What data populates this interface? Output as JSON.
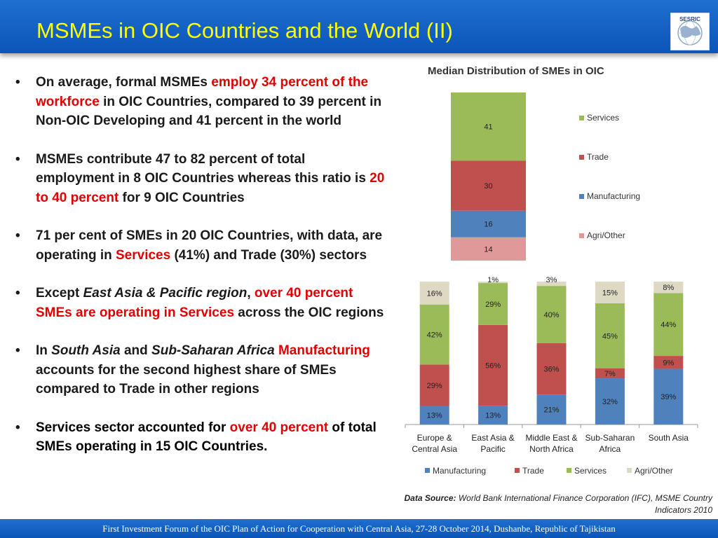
{
  "header": {
    "title": "MSMEs in OIC Countries and the World (II)",
    "logo_text": "SESRIC"
  },
  "bullets": [
    {
      "parts": [
        {
          "text": "On average, formal MSMEs ",
          "style": "normal"
        },
        {
          "text": "employ 34 percent of the workforce",
          "style": "red"
        },
        {
          "text": " in OIC Countries, compared to 39 percent in Non-OIC Developing and 41 percent in the world",
          "style": "normal"
        }
      ]
    },
    {
      "parts": [
        {
          "text": "MSMEs contribute 47 to 82 percent of total employment in 8 OIC Countries whereas this ratio is ",
          "style": "normal"
        },
        {
          "text": "20 to 40 percent",
          "style": "red"
        },
        {
          "text": " for 9 OIC Countries",
          "style": "normal"
        }
      ]
    },
    {
      "parts": [
        {
          "text": "71 per cent of SMEs in 20 OIC Countries, with data, are operating in ",
          "style": "normal"
        },
        {
          "text": "Services",
          "style": "red"
        },
        {
          "text": " (41%) and Trade (30%) sectors",
          "style": "normal"
        }
      ]
    },
    {
      "parts": [
        {
          "text": "Except ",
          "style": "normal"
        },
        {
          "text": "East Asia & Pacific region",
          "style": "italic"
        },
        {
          "text": ", ",
          "style": "normal"
        },
        {
          "text": "over 40 percent SMEs are operating in Services",
          "style": "red"
        },
        {
          "text": " across the OIC regions",
          "style": "normal"
        }
      ]
    },
    {
      "parts": [
        {
          "text": "In ",
          "style": "normal"
        },
        {
          "text": "South Asia",
          "style": "italic"
        },
        {
          "text": " and ",
          "style": "normal"
        },
        {
          "text": "Sub-Saharan Africa",
          "style": "italic"
        },
        {
          "text": " ",
          "style": "normal"
        },
        {
          "text": "Manufacturing",
          "style": "red"
        },
        {
          "text": " accounts for the second highest share of SMEs compared to Trade in other regions",
          "style": "normal"
        }
      ]
    },
    {
      "parts": [
        {
          "text": "Services sector accounted for ",
          "style": "black"
        },
        {
          "text": "over 40 percent",
          "style": "red"
        },
        {
          "text": " of total SMEs operating in 15 OIC Countries.",
          "style": "black"
        }
      ]
    }
  ],
  "bullet_symbol": "•",
  "chart_data": [
    {
      "type": "bar",
      "stacked": true,
      "title": "Median Distribution of SMEs in OIC",
      "categories": [
        ""
      ],
      "series": [
        {
          "name": "Agri/Other",
          "values": [
            14
          ],
          "color": "#e09999"
        },
        {
          "name": "Manufacturing",
          "values": [
            16
          ],
          "color": "#4f81bd"
        },
        {
          "name": "Trade",
          "values": [
            30
          ],
          "color": "#c0504d"
        },
        {
          "name": "Services",
          "values": [
            41
          ],
          "color": "#9bbb59"
        }
      ],
      "data_labels": true,
      "legend_position": "right"
    },
    {
      "type": "bar",
      "stacked": true,
      "title": "",
      "categories": [
        [
          "Europe &",
          "Central Asia"
        ],
        [
          "East Asia &",
          "Pacific"
        ],
        [
          "Middle East &",
          "North Africa"
        ],
        [
          "Sub-Saharan",
          "Africa"
        ],
        [
          "South Asia"
        ]
      ],
      "series": [
        {
          "name": "Manufacturing",
          "values": [
            13,
            13,
            21,
            32,
            39
          ],
          "labels": [
            "13%",
            "13%",
            "21%",
            "32%",
            "39%"
          ],
          "color": "#4f81bd"
        },
        {
          "name": "Trade",
          "values": [
            29,
            56,
            36,
            7,
            9
          ],
          "labels": [
            "29%",
            "56%",
            "36%",
            "7%",
            "9%"
          ],
          "color": "#c0504d"
        },
        {
          "name": "Services",
          "values": [
            42,
            29,
            40,
            45,
            44
          ],
          "labels": [
            "42%",
            "29%",
            "40%",
            "45%",
            "44%"
          ],
          "color": "#9bbb59"
        },
        {
          "name": "Agri/Other",
          "values": [
            16,
            1,
            3,
            15,
            8
          ],
          "labels": [
            "16%",
            "1%",
            "3%",
            "15%",
            "8%"
          ],
          "color": "#ddd9c3"
        }
      ],
      "data_labels": true,
      "legend_position": "bottom"
    }
  ],
  "source": {
    "label": "Data Source:",
    "text": " World Bank International Finance Corporation (IFC), MSME Country Indicators 2010"
  },
  "footer": {
    "text": "First Investment Forum of the OIC Plan of Action for Cooperation with Central Asia, 27-28 October 2014, Dushanbe, Republic of Tajikistan"
  }
}
